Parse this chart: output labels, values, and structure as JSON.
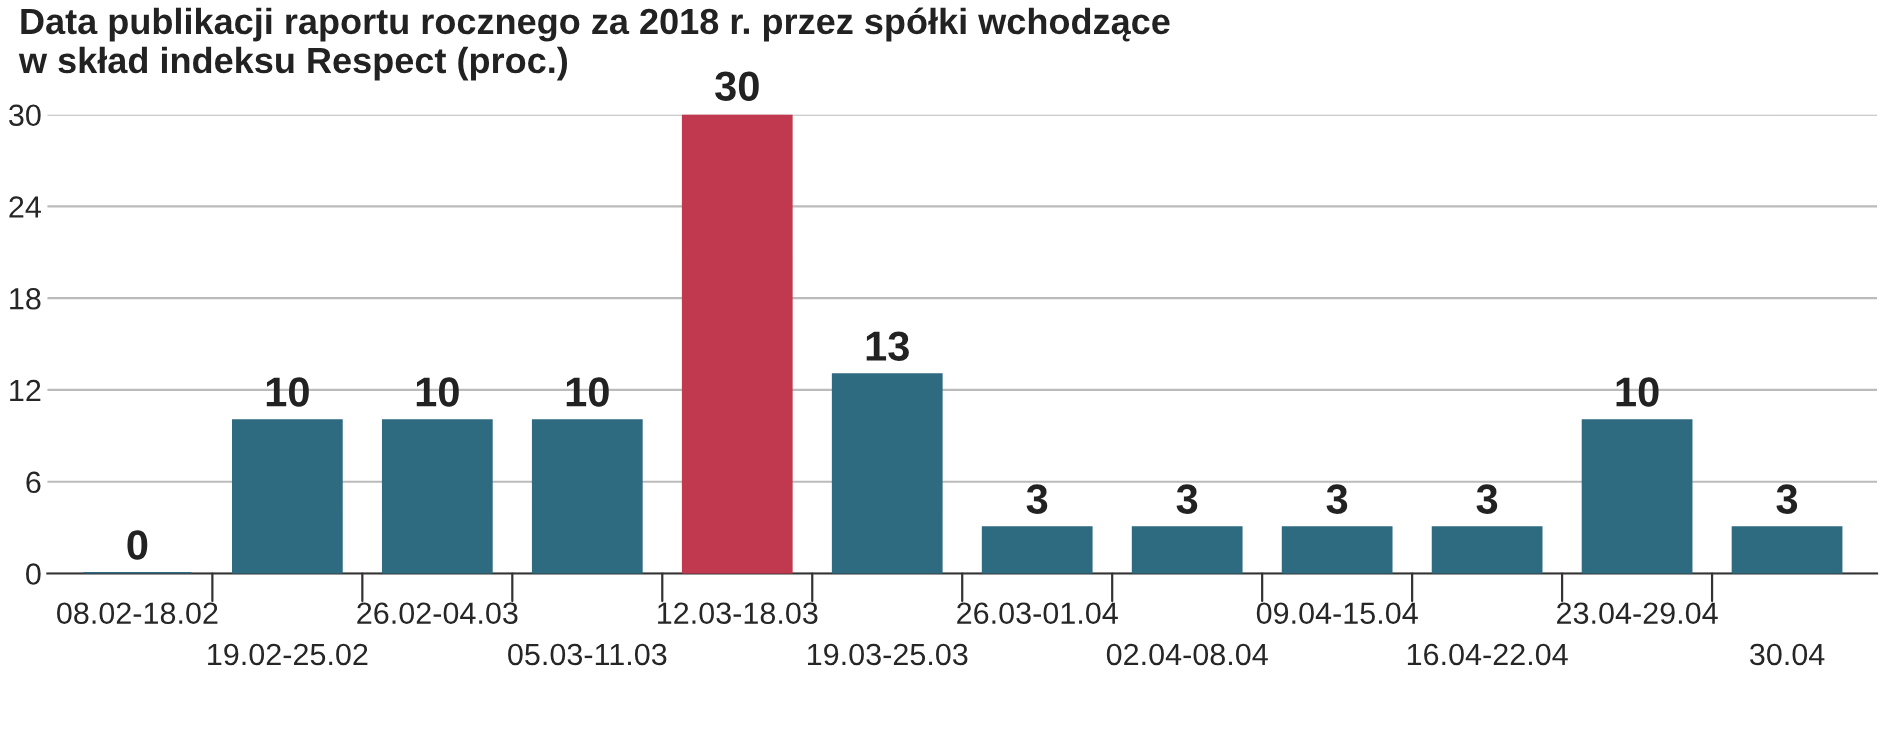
{
  "chart_data": {
    "type": "bar",
    "title": "Data publikacji raportu rocznego za 2018 r. przez spółki wchodzące\nw skład indeksu Respect (proc.)",
    "categories": [
      "08.02-18.02",
      "19.02-25.02",
      "26.02-04.03",
      "05.03-11.03",
      "12.03-18.03",
      "19.03-25.03",
      "26.03-01.04",
      "02.04-08.04",
      "09.04-15.04",
      "16.04-22.04",
      "23.04-29.04",
      "30.04"
    ],
    "values": [
      0,
      10,
      10,
      10,
      30,
      13,
      3,
      3,
      3,
      3,
      10,
      3
    ],
    "colors": [
      "#2e6b80",
      "#2e6b80",
      "#2e6b80",
      "#2e6b80",
      "#c0394f",
      "#2e6b80",
      "#2e6b80",
      "#2e6b80",
      "#2e6b80",
      "#2e6b80",
      "#2e6b80",
      "#2e6b80"
    ],
    "ylim": [
      0,
      30
    ],
    "yticks": [
      0,
      6,
      12,
      18,
      24,
      30
    ],
    "grid": "y",
    "data_labels": true
  }
}
